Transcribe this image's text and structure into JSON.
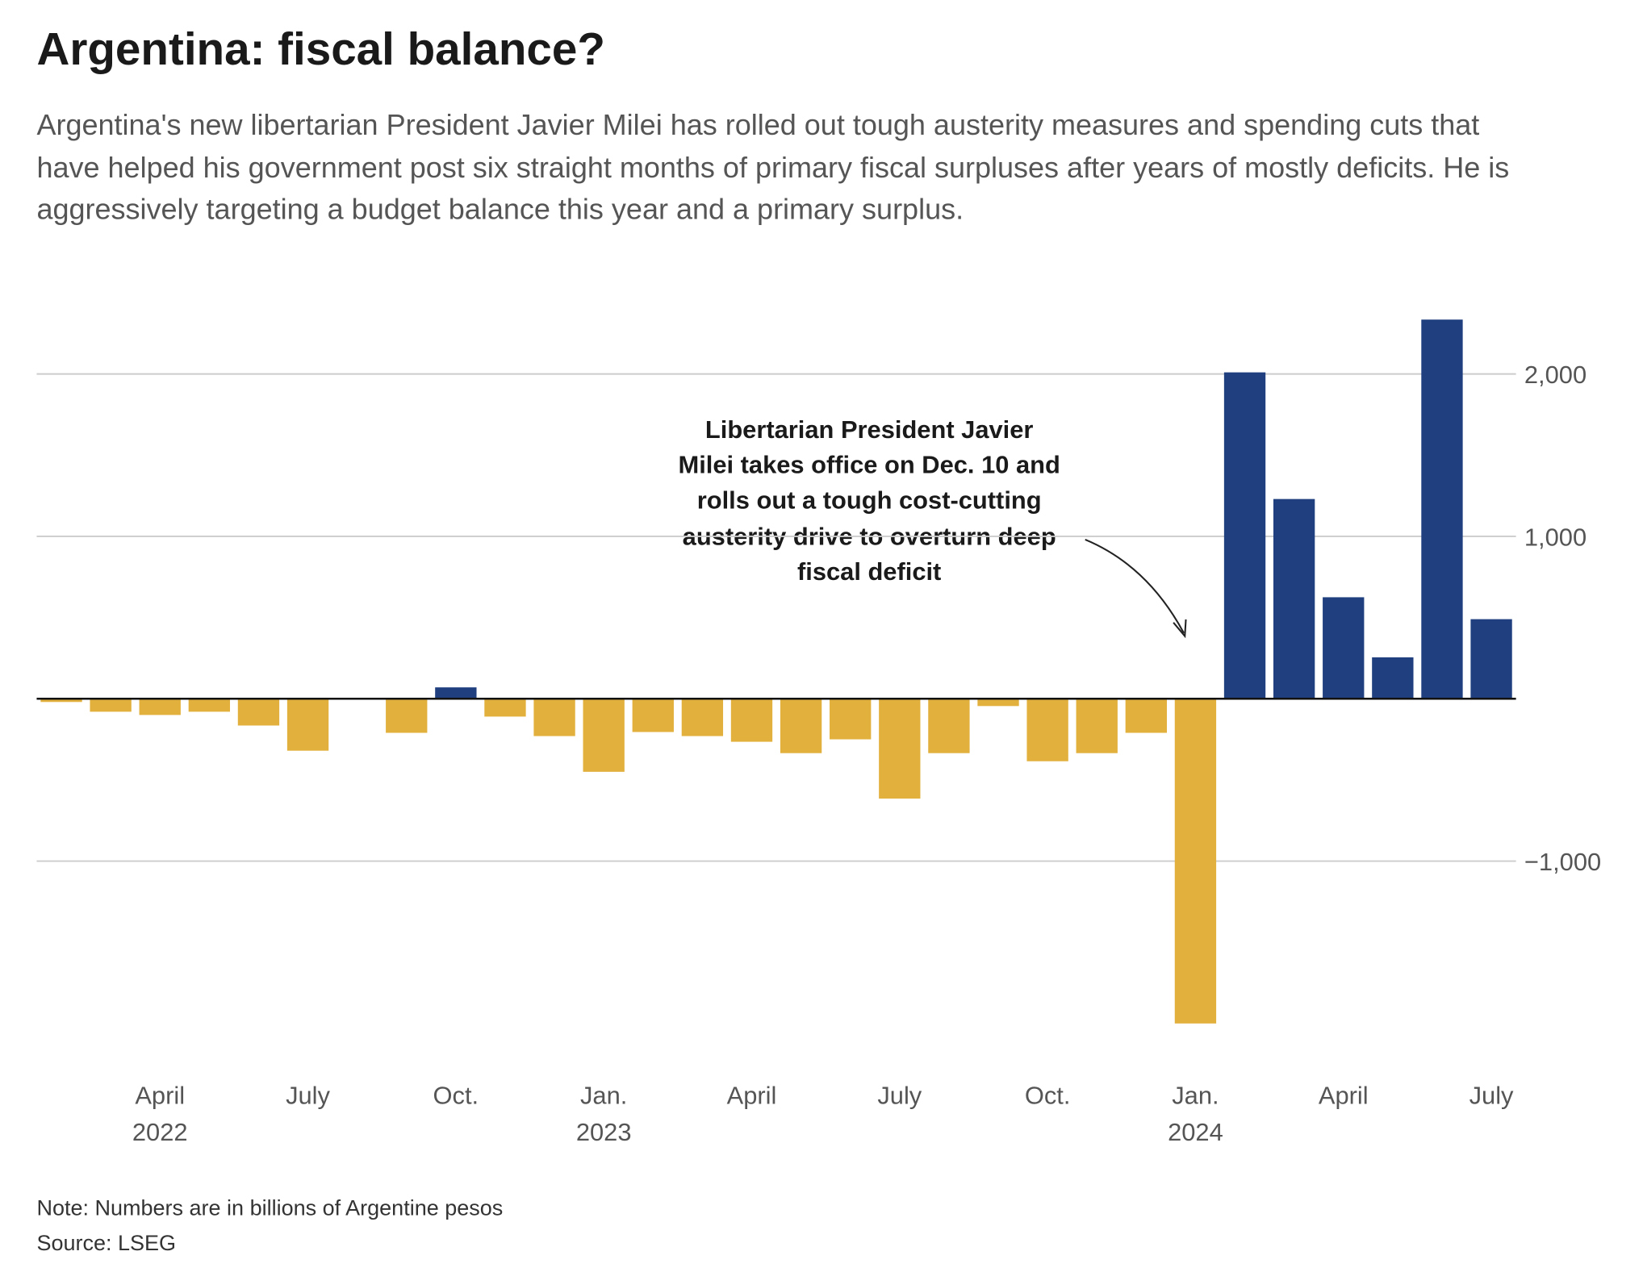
{
  "chart_data": {
    "type": "bar",
    "title": "Argentina: fiscal balance?",
    "subtitle": [
      "Argentina's new libertarian President Javier Milei has rolled out tough austerity measures and spending cuts that",
      "have helped his government post six straight months of primary fiscal surpluses after years of mostly deficits. He is",
      "aggressively targeting a budget balance this year and a primary surplus."
    ],
    "annotation": [
      "Libertarian President Javier",
      "Milei takes office on Dec. 10 and",
      "rolls out a tough cost-cutting",
      "austerity drive to overturn deep",
      "fiscal deficit"
    ],
    "note": "Note: Numbers are in billions of Argentine pesos",
    "source": "Source: LSEG",
    "categories": [
      null,
      null,
      "April",
      null,
      null,
      "July",
      null,
      null,
      "Oct.",
      null,
      null,
      "Jan.",
      null,
      null,
      "April",
      null,
      null,
      "July",
      null,
      null,
      "Oct.",
      null,
      null,
      "Jan.",
      null,
      null,
      "April",
      null,
      null,
      "July"
    ],
    "years": [
      null,
      null,
      "2022",
      null,
      null,
      null,
      null,
      null,
      null,
      null,
      null,
      "2023",
      null,
      null,
      null,
      null,
      null,
      null,
      null,
      null,
      null,
      null,
      null,
      "2024",
      null,
      null,
      null,
      null,
      null,
      null
    ],
    "values": [
      -20,
      -80,
      -100,
      -80,
      -165,
      -320,
      0,
      -210,
      70,
      -110,
      -230,
      -450,
      -205,
      -230,
      -265,
      -335,
      -250,
      -615,
      -335,
      -45,
      -385,
      -335,
      -210,
      -2000,
      2010,
      1230,
      625,
      255,
      2335,
      490
    ],
    "positive_color": "#1f3f7f",
    "negative_color": "#e2b03c",
    "ylim": [
      -2100,
      2450
    ],
    "yticks": [
      {
        "value": -1000,
        "label": "−1,000"
      },
      {
        "value": 1000,
        "label": "1,000"
      },
      {
        "value": 2000,
        "label": "2,000"
      }
    ],
    "grid": true
  }
}
